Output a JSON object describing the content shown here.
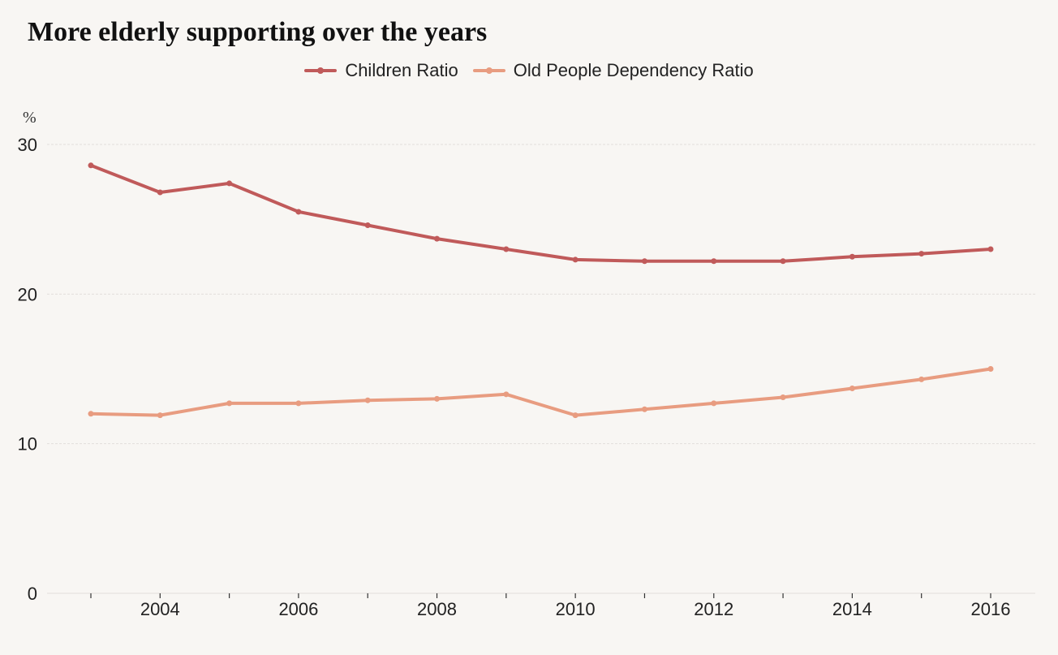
{
  "chart_data": {
    "type": "line",
    "title": "More elderly supporting over the years",
    "ylabel": "%",
    "xlabel": "",
    "x": [
      2003,
      2004,
      2005,
      2006,
      2007,
      2008,
      2009,
      2010,
      2011,
      2012,
      2013,
      2014,
      2015,
      2016
    ],
    "x_tick_labels": [
      "2004",
      "2006",
      "2008",
      "2010",
      "2012",
      "2014",
      "2016"
    ],
    "y_ticks": [
      "0",
      "10",
      "20",
      "30"
    ],
    "ylim": [
      0,
      30
    ],
    "grid": true,
    "legend_position": "top-center",
    "series": [
      {
        "name": "Children Ratio",
        "color": "#c05a5a",
        "values": [
          28.6,
          26.8,
          27.4,
          25.5,
          24.6,
          23.7,
          23.0,
          22.3,
          22.2,
          22.2,
          22.2,
          22.5,
          22.7,
          23.0
        ]
      },
      {
        "name": "Old People Dependency Ratio",
        "color": "#e89c80",
        "values": [
          12.0,
          11.9,
          12.7,
          12.7,
          12.9,
          13.0,
          13.3,
          11.9,
          12.3,
          12.7,
          13.1,
          13.7,
          14.3,
          15.0
        ]
      }
    ]
  }
}
